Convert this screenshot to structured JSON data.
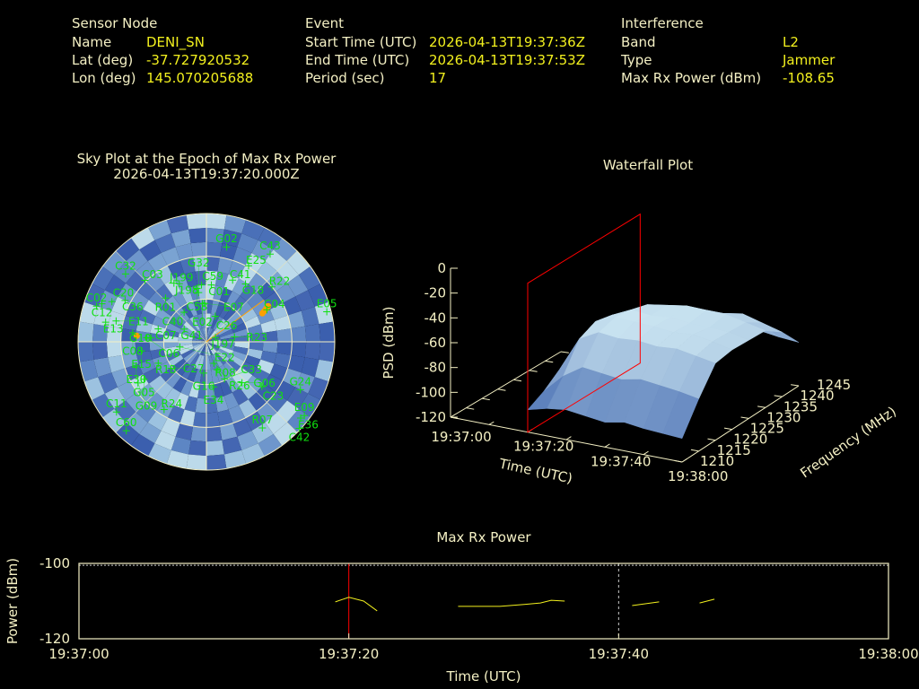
{
  "header": {
    "sensor": {
      "title": "Sensor Node",
      "rows": [
        {
          "label": "Name",
          "value": "DENI_SN"
        },
        {
          "label": "Lat (deg)",
          "value": "-37.727920532"
        },
        {
          "label": "Lon (deg)",
          "value": "145.070205688"
        }
      ]
    },
    "event": {
      "title": "Event",
      "rows": [
        {
          "label": "Start Time (UTC)",
          "value": "2026-04-13T19:37:36Z"
        },
        {
          "label": "End Time (UTC)",
          "value": "2026-04-13T19:37:53Z"
        },
        {
          "label": "Period (sec)",
          "value": "17"
        }
      ]
    },
    "interference": {
      "title": "Interference",
      "rows": [
        {
          "label": "Band",
          "value": "L2"
        },
        {
          "label": "Type",
          "value": "Jammer"
        },
        {
          "label": "Max Rx Power (dBm)",
          "value": "-108.65"
        }
      ]
    }
  },
  "colors": {
    "label": "#f4f0c4",
    "value": "#f2f01e",
    "satellite": "#10e010",
    "jammer": "#ffa000",
    "marker": "#ff0000",
    "line": "#f2f01e"
  },
  "chart_data": [
    {
      "type": "scatter",
      "subtype": "polar-sky-plot",
      "title": "Sky Plot at the Epoch of Max Rx Power",
      "subtitle": "2026-04-13T19:37:20.000Z",
      "elevation_rings_deg": [
        0,
        30,
        60
      ],
      "jammer_bearing_deg": 54,
      "jammer_track": [
        {
          "az": 60,
          "el": 40
        },
        {
          "az": 61,
          "el": 42
        },
        {
          "az": 62,
          "el": 44
        },
        {
          "az": 63,
          "el": 46
        },
        {
          "az": 275,
          "el": 41
        }
      ],
      "satellites": [
        {
          "id": "G02",
          "az": 12,
          "el": 22
        },
        {
          "id": "C43",
          "az": 36,
          "el": 14
        },
        {
          "id": "E25",
          "az": 29,
          "el": 29
        },
        {
          "id": "C41",
          "az": 23,
          "el": 43
        },
        {
          "id": "G18",
          "az": 34,
          "el": 41
        },
        {
          "id": "R22",
          "az": 50,
          "el": 30
        },
        {
          "id": "C04",
          "az": 62,
          "el": 42
        },
        {
          "id": "E05",
          "az": 76,
          "el": 3
        },
        {
          "id": "C32",
          "az": 310,
          "el": 16
        },
        {
          "id": "C03",
          "az": 315,
          "el": 29
        },
        {
          "id": "J199",
          "az": 331,
          "el": 43
        },
        {
          "id": "J198",
          "az": 335,
          "el": 45
        },
        {
          "id": "C59",
          "az": 355,
          "el": 50
        },
        {
          "id": "C01",
          "az": 5,
          "el": 50
        },
        {
          "id": "C58",
          "az": 350,
          "el": 52
        },
        {
          "id": "G32",
          "az": 351,
          "el": 55
        },
        {
          "id": "R01",
          "az": 317,
          "el": 48
        },
        {
          "id": "E02",
          "az": 354,
          "el": 63
        },
        {
          "id": "E07",
          "az": 357,
          "el": 63
        },
        {
          "id": "C26",
          "az": 19,
          "el": 71
        },
        {
          "id": "C40",
          "az": 323,
          "el": 64
        },
        {
          "id": "C07",
          "az": 285,
          "el": 55
        },
        {
          "id": "G10",
          "az": 274,
          "el": 51
        },
        {
          "id": "G41",
          "az": 300,
          "el": 72
        },
        {
          "id": "J197",
          "az": 65,
          "el": 83
        },
        {
          "id": "R23",
          "az": 80,
          "el": 70
        },
        {
          "id": "C02",
          "az": 288,
          "el": 9
        },
        {
          "id": "C12",
          "az": 290,
          "el": 12
        },
        {
          "id": "C20",
          "az": 293,
          "el": 18
        },
        {
          "id": "C36",
          "az": 297,
          "el": 26
        },
        {
          "id": "E13",
          "az": 281,
          "el": 18
        },
        {
          "id": "E11",
          "az": 283,
          "el": 25
        },
        {
          "id": "C08",
          "az": 277,
          "el": 38
        },
        {
          "id": "C06",
          "az": 274,
          "el": 48
        },
        {
          "id": "E15",
          "az": 262,
          "el": 44
        },
        {
          "id": "R13",
          "az": 246,
          "el": 53
        },
        {
          "id": "C27",
          "az": 233,
          "el": 59
        },
        {
          "id": "E22",
          "az": 259,
          "el": 71
        },
        {
          "id": "E30",
          "az": 251,
          "el": 38
        },
        {
          "id": "G05",
          "az": 239,
          "el": 39
        },
        {
          "id": "G09",
          "az": 239,
          "el": 34
        },
        {
          "id": "R24",
          "az": 212,
          "el": 34
        },
        {
          "id": "C11",
          "az": 232,
          "el": 10
        },
        {
          "id": "C60",
          "az": 222,
          "el": 6
        },
        {
          "id": "R08",
          "az": 161,
          "el": 74
        },
        {
          "id": "G16",
          "az": 185,
          "el": 68
        },
        {
          "id": "R26",
          "az": 159,
          "el": 69
        },
        {
          "id": "E34",
          "az": 171,
          "el": 58
        },
        {
          "id": "C33",
          "az": 154,
          "el": 61
        },
        {
          "id": "G06",
          "az": 139,
          "el": 52
        },
        {
          "id": "C23",
          "az": 129,
          "el": 40
        },
        {
          "id": "G24",
          "az": 117,
          "el": 16
        },
        {
          "id": "R07",
          "az": 147,
          "el": 18
        },
        {
          "id": "E09",
          "az": 127,
          "el": 4
        },
        {
          "id": "E36",
          "az": 129,
          "el": 5
        },
        {
          "id": "C42",
          "az": 133,
          "el": 1
        }
      ]
    },
    {
      "type": "surface",
      "title": "Waterfall Plot",
      "xlabel": "Time (UTC)",
      "ylabel": "Frequency (MHz)",
      "zlabel": "PSD (dBm)",
      "x_ticks": [
        "19:37:00",
        "19:37:20",
        "19:37:40",
        "19:38:00"
      ],
      "x_tick_values": [
        0,
        20,
        40,
        60
      ],
      "y_ticks": [
        "1210",
        "1215",
        "1220",
        "1225",
        "1230",
        "1235",
        "1240",
        "1245"
      ],
      "z_ticks": [
        "0",
        "-20",
        "-40",
        "-60",
        "-80",
        "-100",
        "-120"
      ],
      "xlim": [
        0,
        60
      ],
      "ylim": [
        1210,
        1245
      ],
      "zlim": [
        -120,
        0
      ],
      "epoch_marker": 20,
      "grid_times": [
        20,
        25,
        30,
        35,
        40,
        45,
        50,
        55,
        60
      ],
      "grid_freqs": [
        1210,
        1215,
        1220,
        1225,
        1230,
        1235,
        1240,
        1245
      ],
      "psd": [
        [
          -102,
          -95,
          -85,
          -82,
          -84,
          -88,
          -95,
          -100
        ],
        [
          -98,
          -80,
          -58,
          -52,
          -55,
          -60,
          -75,
          -92
        ],
        [
          -96,
          -70,
          -50,
          -46,
          -48,
          -52,
          -68,
          -88
        ],
        [
          -98,
          -72,
          -52,
          -47,
          -50,
          -50,
          -66,
          -86
        ],
        [
          -100,
          -74,
          -51,
          -48,
          -49,
          -48,
          -62,
          -84
        ],
        [
          -97,
          -71,
          -53,
          -50,
          -51,
          -49,
          -60,
          -82
        ],
        [
          -99,
          -73,
          -52,
          -49,
          -52,
          -50,
          -58,
          -80
        ],
        [
          -100,
          -75,
          -55,
          -52,
          -53,
          -54,
          -63,
          -83
        ],
        [
          -101,
          -78,
          -58,
          -56,
          -57,
          -58,
          -68,
          -85
        ]
      ]
    },
    {
      "type": "line",
      "title": "Max Rx Power",
      "xlabel": "Time (UTC)",
      "ylabel": "Power (dBm)",
      "x_ticks": [
        "19:37:00",
        "19:37:20",
        "19:37:40",
        "19:38:00"
      ],
      "x_tick_values": [
        0,
        20,
        40,
        60
      ],
      "y_ticks": [
        "-100",
        "-120"
      ],
      "y_tick_values": [
        -100,
        -120
      ],
      "xlim": [
        0,
        60
      ],
      "ylim": [
        -120,
        -100
      ],
      "threshold": -100.5,
      "epoch_marker": 20,
      "segments": [
        [
          [
            19.0,
            -110.2
          ],
          [
            20.0,
            -109.0
          ],
          [
            21.1,
            -110.0
          ],
          [
            22.1,
            -112.6
          ]
        ],
        [
          [
            28.1,
            -111.4
          ],
          [
            31.2,
            -111.4
          ],
          [
            33.0,
            -110.9
          ],
          [
            34.2,
            -110.5
          ],
          [
            35.0,
            -109.8
          ],
          [
            36.0,
            -110.0
          ]
        ],
        [
          [
            41.0,
            -111.2
          ],
          [
            43.0,
            -110.2
          ]
        ],
        [
          [
            46.0,
            -110.5
          ],
          [
            47.1,
            -109.5
          ]
        ]
      ]
    }
  ]
}
